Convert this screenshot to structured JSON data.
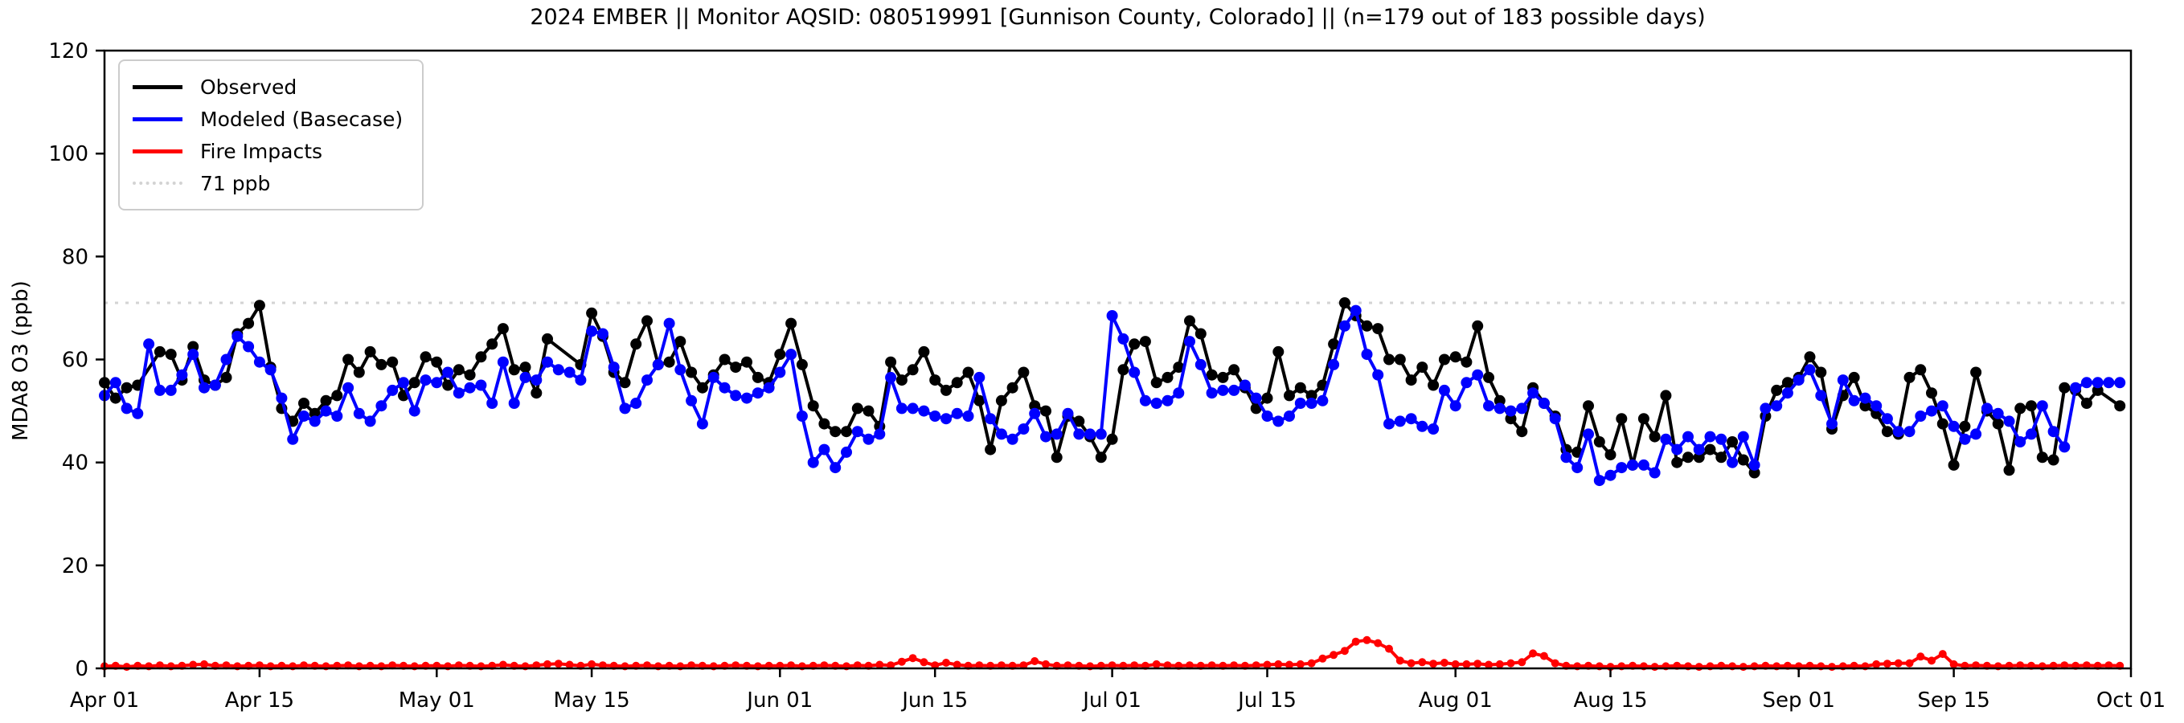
{
  "title": "2024 EMBER || Monitor AQSID: 080519991 [Gunnison County, Colorado] || (n=179 out of 183 possible days)",
  "y_axis": {
    "label": "MDA8 O3 (ppb)",
    "min": 0,
    "max": 120,
    "ticks": [
      0,
      20,
      40,
      60,
      80,
      100,
      120
    ]
  },
  "x_axis": {
    "ticks": [
      {
        "label": "Apr 01",
        "day": 0
      },
      {
        "label": "Apr 15",
        "day": 14
      },
      {
        "label": "May 01",
        "day": 30
      },
      {
        "label": "May 15",
        "day": 44
      },
      {
        "label": "Jun 01",
        "day": 61
      },
      {
        "label": "Jun 15",
        "day": 75
      },
      {
        "label": "Jul 01",
        "day": 91
      },
      {
        "label": "Jul 15",
        "day": 105
      },
      {
        "label": "Aug 01",
        "day": 122
      },
      {
        "label": "Aug 15",
        "day": 136
      },
      {
        "label": "Sep 01",
        "day": 153
      },
      {
        "label": "Sep 15",
        "day": 167
      },
      {
        "label": "Oct 01",
        "day": 183
      }
    ]
  },
  "legend": [
    {
      "label": "Observed",
      "color": "#000000",
      "style": "solid"
    },
    {
      "label": "Modeled (Basecase)",
      "color": "#0000ff",
      "style": "solid"
    },
    {
      "label": "Fire Impacts",
      "color": "#ff0000",
      "style": "solid"
    },
    {
      "label": "71 ppb",
      "color": "#d3d3d3",
      "style": "dotted"
    }
  ],
  "threshold": {
    "value": 71,
    "label": "71 ppb",
    "color": "#d3d3d3"
  },
  "chart_data": {
    "type": "line",
    "title": "2024 EMBER || Monitor AQSID: 080519991 [Gunnison County, Colorado] || (n=179 out of 183 possible days)",
    "xlabel": "",
    "ylabel": "MDA8 O3 (ppb)",
    "ylim": [
      0,
      120
    ],
    "x_start": "Apr 01",
    "x_end": "Oct 01",
    "n_days": 183,
    "observed_days_note": "n=179 out of 183 possible days",
    "grid": false,
    "legend_position": "upper left",
    "threshold_line_ppb": 71,
    "series": [
      {
        "name": "Observed",
        "color": "#000000",
        "marker": "circle",
        "values": [
          55.5,
          52.5,
          54.5,
          55,
          null,
          61.5,
          61,
          56,
          62.5,
          56,
          55,
          56.5,
          65,
          67,
          70.5,
          58.5,
          50.5,
          48,
          51.5,
          49.5,
          52,
          53,
          60,
          57.5,
          61.5,
          59,
          59.5,
          53,
          55.5,
          60.5,
          59.5,
          55,
          58,
          57,
          60.5,
          63,
          66,
          58,
          58.5,
          53.5,
          64,
          null,
          null,
          59,
          69,
          64.5,
          57.5,
          55.5,
          63,
          67.5,
          59,
          59.5,
          63.5,
          57.5,
          54.5,
          57,
          60,
          58.5,
          59.5,
          56.5,
          55.5,
          61,
          67,
          59,
          51,
          47.5,
          46,
          46,
          50.5,
          50,
          47,
          59.5,
          56,
          58,
          61.5,
          56,
          54,
          55.5,
          57.5,
          52,
          42.5,
          52,
          54.5,
          57.5,
          51,
          50,
          41,
          49,
          48,
          45,
          41,
          44.5,
          58,
          63,
          63.5,
          55.5,
          56.5,
          58.5,
          67.5,
          65,
          57,
          56.5,
          58,
          54.5,
          50.5,
          52.5,
          61.5,
          53,
          54.5,
          53,
          55,
          63,
          71,
          68.5,
          66.5,
          66,
          60,
          60,
          56,
          58.5,
          55,
          60,
          60.5,
          59.5,
          66.5,
          56.5,
          52,
          48.5,
          46,
          54.5,
          51.5,
          49,
          42.5,
          42,
          51,
          44,
          41.5,
          48.5,
          39.5,
          48.5,
          45,
          53,
          40,
          41,
          41,
          42.5,
          41,
          44,
          40.5,
          38,
          49,
          54,
          55.5,
          56.5,
          60.5,
          57.5,
          46.5,
          53,
          56.5,
          51,
          49.5,
          46,
          45.5,
          56.5,
          58,
          53.5,
          47.5,
          39.5,
          47,
          57.5,
          50,
          47.5,
          38.5,
          50.5,
          51,
          41,
          40.5,
          54.5,
          54,
          51.5,
          54,
          null,
          51
        ]
      },
      {
        "name": "Modeled (Basecase)",
        "color": "#0000ff",
        "marker": "circle",
        "values": [
          53,
          55.5,
          50.5,
          49.5,
          63,
          54,
          54,
          57,
          61,
          54.5,
          55,
          60,
          64.5,
          62.5,
          59.5,
          58,
          52.5,
          44.5,
          49,
          48,
          50,
          49,
          54.5,
          49.5,
          48,
          51,
          54,
          55.5,
          50,
          56,
          55.5,
          57.5,
          53.5,
          54.5,
          55,
          51.5,
          59.5,
          51.5,
          56.5,
          56,
          59.5,
          58,
          57.5,
          56,
          65.5,
          65,
          58.5,
          50.5,
          51.5,
          56,
          59,
          67,
          58,
          52,
          47.5,
          56.5,
          54.5,
          53,
          52.5,
          53.5,
          54.5,
          57.5,
          61,
          49,
          40,
          42.5,
          39,
          42,
          46,
          44.5,
          45.5,
          56.5,
          50.5,
          50.5,
          50,
          49,
          48.5,
          49.5,
          49,
          56.5,
          48.5,
          45.5,
          44.5,
          46.5,
          49.5,
          45,
          45.5,
          49.5,
          45.5,
          45.5,
          45.5,
          68.5,
          64,
          57.5,
          52,
          51.5,
          52,
          53.5,
          63.5,
          59,
          53.5,
          54,
          54,
          55,
          52.5,
          49,
          48,
          49,
          51.5,
          51.5,
          52,
          59,
          66.5,
          69.5,
          61,
          57,
          47.5,
          48,
          48.5,
          47,
          46.5,
          54,
          51,
          55.5,
          57,
          51,
          50.5,
          50,
          50.5,
          53.5,
          51.5,
          48.5,
          41,
          39,
          45.5,
          36.5,
          37.5,
          39,
          39.5,
          39.5,
          38,
          44.5,
          42.5,
          45,
          42.5,
          45,
          44.5,
          40,
          45,
          39.5,
          50.5,
          51,
          53.5,
          56,
          58,
          53,
          47.5,
          56,
          52,
          52.5,
          51,
          48.5,
          46,
          46,
          49,
          50,
          51,
          47,
          44.5,
          45.5,
          50.5,
          49.5,
          48,
          44,
          45.5,
          51,
          46,
          43,
          54.5,
          55.5,
          55.5,
          55.5,
          55.5
        ]
      },
      {
        "name": "Fire Impacts",
        "color": "#ff0000",
        "marker": "circle",
        "values": [
          0.4,
          0.5,
          0.3,
          0.5,
          0.4,
          0.6,
          0.4,
          0.5,
          0.7,
          0.8,
          0.5,
          0.6,
          0.4,
          0.5,
          0.6,
          0.4,
          0.5,
          0.4,
          0.6,
          0.5,
          0.4,
          0.5,
          0.6,
          0.4,
          0.5,
          0.4,
          0.6,
          0.5,
          0.4,
          0.5,
          0.5,
          0.4,
          0.6,
          0.5,
          0.4,
          0.5,
          0.7,
          0.5,
          0.4,
          0.6,
          0.8,
          0.9,
          0.7,
          0.5,
          0.8,
          0.6,
          0.5,
          0.4,
          0.5,
          0.6,
          0.4,
          0.5,
          0.4,
          0.6,
          0.5,
          0.4,
          0.5,
          0.6,
          0.5,
          0.4,
          0.5,
          0.5,
          0.6,
          0.4,
          0.5,
          0.6,
          0.5,
          0.4,
          0.6,
          0.5,
          0.7,
          0.6,
          1.3,
          2.0,
          1.2,
          0.6,
          1.1,
          0.7,
          0.5,
          0.6,
          0.5,
          0.6,
          0.5,
          0.6,
          1.4,
          0.8,
          0.5,
          0.6,
          0.5,
          0.4,
          0.5,
          0.6,
          0.5,
          0.6,
          0.5,
          0.8,
          0.6,
          0.5,
          0.6,
          0.5,
          0.6,
          0.5,
          0.6,
          0.5,
          0.6,
          0.7,
          0.8,
          0.7,
          0.8,
          1.0,
          1.9,
          2.6,
          3.4,
          5.2,
          5.5,
          4.9,
          3.8,
          1.5,
          1.0,
          1.2,
          0.9,
          1.1,
          0.8,
          0.8,
          0.9,
          0.7,
          0.8,
          1.0,
          1.2,
          2.9,
          2.4,
          1.0,
          0.5,
          0.4,
          0.5,
          0.4,
          0.3,
          0.4,
          0.5,
          0.4,
          0.3,
          0.4,
          0.5,
          0.4,
          0.3,
          0.4,
          0.5,
          0.4,
          0.3,
          0.4,
          0.5,
          0.4,
          0.5,
          0.4,
          0.5,
          0.4,
          0.3,
          0.4,
          0.5,
          0.4,
          0.8,
          0.9,
          1.0,
          1.0,
          2.3,
          1.5,
          2.8,
          0.8,
          0.5,
          0.6,
          0.5,
          0.4,
          0.5,
          0.6,
          0.5,
          0.4,
          0.5,
          0.6,
          0.5,
          0.6,
          0.5,
          0.6,
          0.5
        ]
      }
    ]
  }
}
